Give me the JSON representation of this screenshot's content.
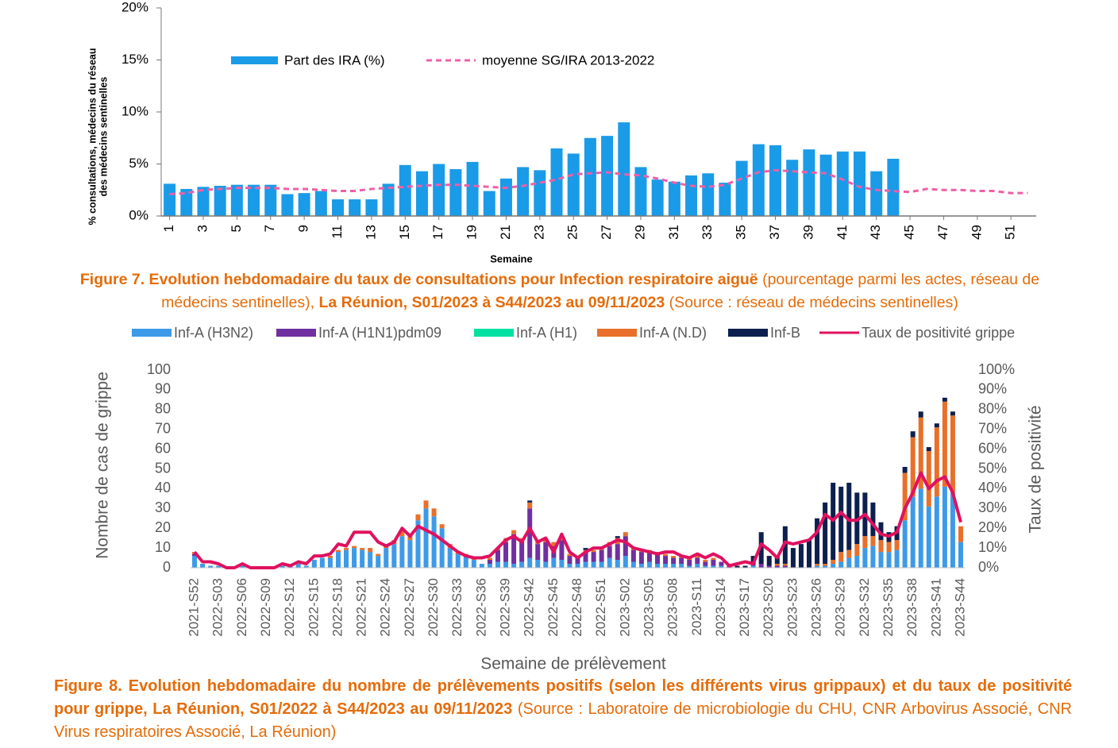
{
  "chart_data": [
    {
      "type": "bar",
      "ylabel": [
        "% consultations, médecins du réseau",
        "des médecins sentinelles"
      ],
      "xlabel": "Semaine",
      "x": [
        1,
        2,
        3,
        4,
        5,
        6,
        7,
        8,
        9,
        10,
        11,
        12,
        13,
        14,
        15,
        16,
        17,
        18,
        19,
        20,
        21,
        22,
        23,
        24,
        25,
        26,
        27,
        28,
        29,
        30,
        31,
        32,
        33,
        34,
        35,
        36,
        37,
        38,
        39,
        40,
        41,
        42,
        43,
        44,
        45,
        46,
        47,
        48,
        49,
        50,
        51,
        52
      ],
      "xlim": [
        0.5,
        52.5
      ],
      "xticks": [
        1,
        3,
        5,
        7,
        9,
        11,
        13,
        15,
        17,
        19,
        21,
        23,
        25,
        27,
        29,
        31,
        33,
        35,
        37,
        39,
        41,
        43,
        45,
        47,
        49,
        51
      ],
      "ylim": [
        0,
        20
      ],
      "yticks": [
        {
          "value": 0,
          "label": "0%"
        },
        {
          "value": 5,
          "label": "5%"
        },
        {
          "value": 10,
          "label": "10%"
        },
        {
          "value": 15,
          "label": "15%"
        },
        {
          "value": 20,
          "label": "20%"
        }
      ],
      "series": [
        {
          "name": "Part des IRA (%)",
          "type": "bar",
          "color": "#1a9be8",
          "values": [
            3.1,
            2.6,
            2.8,
            2.9,
            3.0,
            3.0,
            3.0,
            2.1,
            2.2,
            2.4,
            1.6,
            1.6,
            1.6,
            3.1,
            4.9,
            4.3,
            5.0,
            4.5,
            5.2,
            2.4,
            3.6,
            4.7,
            4.4,
            6.5,
            6.0,
            7.5,
            7.7,
            9.0,
            4.7,
            3.5,
            3.3,
            3.9,
            4.1,
            3.2,
            5.3,
            6.9,
            6.8,
            5.4,
            6.4,
            5.9,
            6.2,
            6.2,
            4.3,
            5.5,
            null,
            null,
            null,
            null,
            null,
            null,
            null,
            null
          ]
        },
        {
          "name": "moyenne SG/IRA 2013-2022",
          "type": "line",
          "dashed": true,
          "color": "#ee5fa7",
          "values": [
            2.1,
            2.2,
            2.5,
            2.6,
            2.7,
            2.7,
            2.7,
            2.6,
            2.6,
            2.5,
            2.4,
            2.4,
            2.6,
            2.7,
            2.8,
            2.9,
            3.0,
            3.0,
            2.9,
            2.8,
            2.7,
            2.9,
            3.2,
            3.5,
            4.0,
            4.1,
            4.2,
            4.0,
            3.9,
            3.6,
            3.2,
            2.9,
            2.8,
            3.0,
            3.6,
            4.2,
            4.4,
            4.3,
            4.2,
            4.1,
            3.5,
            2.8,
            2.5,
            2.4,
            2.3,
            2.6,
            2.5,
            2.5,
            2.4,
            2.4,
            2.2,
            2.2
          ]
        }
      ],
      "caption": [
        {
          "text": "Figure 7. Evolution hebdomadaire du taux de consultations pour Infection respiratoire aiguë",
          "bold": true
        },
        {
          "text": " (pourcentage parmi les actes, réseau de médecins sentinelles), ",
          "bold": false
        },
        {
          "text": "La Réunion, S01/2023 à S44/2023 au 09/11/2023",
          "bold": true
        },
        {
          "text": " (Source : réseau de médecins sentinelles)",
          "bold": false
        }
      ]
    },
    {
      "type": "bar",
      "stacked": true,
      "ylabel": "Nombre de cas de grippe",
      "y2label": "Taux de positivité",
      "xlabel": "Semaine de prélèvement",
      "categories": [
        "2021-S52",
        null,
        null,
        "2022-S03",
        null,
        null,
        "2022-S06",
        null,
        null,
        "2022-S09",
        null,
        null,
        "2022-S12",
        null,
        null,
        "2022-S15",
        null,
        null,
        "2022-S18",
        null,
        null,
        "2022-S21",
        null,
        null,
        "2022-S24",
        null,
        null,
        "2022-S27",
        null,
        null,
        "2022-S30",
        null,
        null,
        "2022-S33",
        null,
        null,
        "2022-S36",
        null,
        null,
        "2022-S39",
        null,
        null,
        "2022-S42",
        null,
        null,
        "2022-S45",
        null,
        null,
        "2022-S48",
        null,
        null,
        "2022-S51",
        null,
        null,
        "2023-S02",
        null,
        null,
        "2023-S05",
        null,
        null,
        "2023-S08",
        null,
        null,
        "2023-S11",
        null,
        null,
        "2023-S14",
        null,
        null,
        "2023-S17",
        null,
        null,
        "2023-S20",
        null,
        null,
        "2023-S23",
        null,
        null,
        "2023-S26",
        null,
        null,
        "2023-S29",
        null,
        null,
        "2023-S32",
        null,
        null,
        "2023-S35",
        null,
        null,
        "2023-S38",
        null,
        null,
        "2023-S41",
        null,
        null,
        "2023-S44"
      ],
      "ylim": [
        0,
        100
      ],
      "yticks": [
        0,
        10,
        20,
        30,
        40,
        50,
        60,
        70,
        80,
        90,
        100
      ],
      "y2lim": [
        0,
        100
      ],
      "y2ticks": [
        {
          "value": 0,
          "label": "0%"
        },
        {
          "value": 10,
          "label": "10%"
        },
        {
          "value": 20,
          "label": "20%"
        },
        {
          "value": 30,
          "label": "30%"
        },
        {
          "value": 40,
          "label": "40%"
        },
        {
          "value": 50,
          "label": "50%"
        },
        {
          "value": 60,
          "label": "60%"
        },
        {
          "value": 70,
          "label": "70%"
        },
        {
          "value": 80,
          "label": "80%"
        },
        {
          "value": 90,
          "label": "90%"
        },
        {
          "value": 100,
          "label": "100%"
        }
      ],
      "series": [
        {
          "name": "Inf-A (H3N2)",
          "type": "bar",
          "color": "#3d9ae8",
          "values": [
            6,
            2,
            1,
            1,
            0,
            0,
            1,
            0,
            0,
            0,
            0,
            1,
            1,
            2,
            1,
            4,
            5,
            5,
            8,
            9,
            10,
            9,
            8,
            6,
            10,
            12,
            16,
            14,
            24,
            30,
            26,
            20,
            10,
            7,
            6,
            4,
            2,
            2,
            3,
            3,
            2,
            3,
            5,
            4,
            3,
            5,
            4,
            2,
            2,
            3,
            3,
            3,
            5,
            4,
            6,
            3,
            2,
            3,
            2,
            2,
            2,
            2,
            1,
            2,
            1,
            1,
            1,
            0,
            0,
            0,
            1,
            0,
            0,
            0,
            0,
            0,
            0,
            0,
            1,
            1,
            2,
            3,
            5,
            6,
            10,
            11,
            8,
            8,
            9,
            24,
            36,
            40,
            31,
            36,
            41,
            38,
            13
          ]
        },
        {
          "name": "Inf-A  (H1N1)pdm09",
          "type": "bar",
          "color": "#7030a0",
          "values": [
            1,
            0,
            0,
            0,
            0,
            0,
            0,
            0,
            0,
            0,
            0,
            0,
            0,
            0,
            0,
            0,
            0,
            0,
            0,
            0,
            0,
            0,
            0,
            0,
            0,
            0,
            0,
            0,
            0,
            0,
            0,
            0,
            0,
            0,
            0,
            0,
            0,
            2,
            6,
            10,
            15,
            10,
            25,
            8,
            10,
            6,
            10,
            4,
            3,
            5,
            5,
            6,
            6,
            8,
            10,
            6,
            6,
            5,
            5,
            4,
            3,
            3,
            3,
            3,
            2,
            3,
            2,
            1,
            0,
            0,
            1,
            2,
            1,
            1,
            1,
            0,
            0,
            0,
            0,
            0,
            0,
            0,
            0,
            0,
            0,
            0,
            0,
            0,
            0,
            0,
            0,
            0,
            0,
            0,
            0,
            0,
            0
          ]
        },
        {
          "name": "Inf-A (H1)",
          "type": "bar",
          "color": "#00e0a0",
          "values": [
            0,
            0,
            0,
            0,
            0,
            0,
            0,
            0,
            0,
            0,
            0,
            0,
            0,
            0,
            0,
            0,
            0,
            0,
            0,
            0,
            0,
            0,
            0,
            0,
            0,
            0,
            0,
            0,
            0,
            0,
            0,
            0,
            0,
            0,
            0,
            0,
            0,
            0,
            0,
            0,
            0,
            0,
            0,
            0,
            0,
            0,
            0,
            0,
            0,
            0,
            0,
            0,
            0,
            0,
            0,
            0,
            0,
            0,
            0,
            0,
            0,
            0,
            0,
            0,
            0,
            0,
            0,
            0,
            0,
            0,
            0,
            0,
            0,
            0,
            0,
            0,
            0,
            0,
            0,
            0,
            0,
            0,
            0,
            0,
            0,
            0,
            0,
            0,
            0,
            0,
            0,
            0,
            0,
            0,
            0,
            0,
            0
          ]
        },
        {
          "name": "Inf-A (N.D)",
          "type": "bar",
          "color": "#e8702a",
          "values": [
            1,
            0,
            0,
            0,
            0,
            0,
            0,
            0,
            0,
            0,
            0,
            0,
            0,
            0,
            0,
            0,
            0,
            1,
            1,
            1,
            1,
            1,
            2,
            1,
            2,
            2,
            3,
            2,
            3,
            4,
            4,
            2,
            2,
            1,
            1,
            1,
            0,
            1,
            1,
            2,
            2,
            2,
            3,
            2,
            2,
            2,
            2,
            1,
            1,
            1,
            1,
            1,
            2,
            3,
            2,
            1,
            1,
            1,
            1,
            1,
            1,
            1,
            1,
            1,
            1,
            1,
            0,
            0,
            0,
            0,
            0,
            0,
            0,
            1,
            1,
            0,
            0,
            0,
            1,
            1,
            2,
            5,
            4,
            6,
            6,
            5,
            6,
            5,
            5,
            24,
            30,
            36,
            28,
            35,
            43,
            39,
            8
          ]
        },
        {
          "name": "Inf-B",
          "type": "bar",
          "color": "#0d1f4f",
          "values": [
            0,
            0,
            0,
            0,
            0,
            0,
            0,
            0,
            0,
            0,
            0,
            0,
            0,
            0,
            0,
            0,
            0,
            0,
            0,
            0,
            0,
            0,
            0,
            0,
            0,
            0,
            0,
            0,
            0,
            0,
            0,
            0,
            0,
            0,
            0,
            0,
            0,
            0,
            0,
            0,
            0,
            0,
            1,
            0,
            0,
            0,
            0,
            0,
            0,
            1,
            0,
            0,
            0,
            1,
            0,
            0,
            0,
            0,
            0,
            0,
            0,
            0,
            0,
            0,
            0,
            0,
            0,
            0,
            1,
            1,
            4,
            16,
            5,
            4,
            19,
            10,
            12,
            14,
            23,
            31,
            39,
            33,
            34,
            26,
            22,
            17,
            9,
            5,
            7,
            3,
            3,
            3,
            2,
            2,
            2,
            2,
            0
          ]
        },
        {
          "name": "Taux de positivité grippe",
          "type": "line",
          "axis": "y2",
          "color": "#e0115f",
          "values": [
            8,
            3,
            3,
            2,
            0,
            0,
            2,
            0,
            0,
            0,
            0,
            2,
            1,
            3,
            2,
            6,
            6,
            7,
            12,
            11,
            18,
            18,
            18,
            13,
            11,
            13,
            20,
            16,
            21,
            19,
            17,
            14,
            11,
            8,
            6,
            5,
            5,
            6,
            10,
            14,
            16,
            13,
            20,
            13,
            15,
            8,
            17,
            8,
            5,
            8,
            10,
            10,
            12,
            14,
            13,
            10,
            9,
            8,
            7,
            8,
            8,
            6,
            5,
            7,
            5,
            7,
            5,
            1,
            2,
            3,
            2,
            12,
            9,
            5,
            13,
            12,
            13,
            14,
            18,
            27,
            24,
            28,
            24,
            24,
            27,
            22,
            17,
            16,
            18,
            30,
            38,
            48,
            40,
            44,
            46,
            38,
            23
          ]
        }
      ],
      "caption": [
        {
          "text": "Figure 8. Evolution hebdomadaire du nombre de prélèvements positifs (selon les différents virus grippaux) et du taux de positivité pour grippe, La Réunion, S01/2022 à S44/2023 au 09/11/2023",
          "bold": true
        },
        {
          "text": " (Source : Laboratoire de microbiologie du CHU, CNR Arbovirus Associé, CNR Virus respiratoires Associé, La Réunion)",
          "bold": false
        }
      ]
    }
  ]
}
